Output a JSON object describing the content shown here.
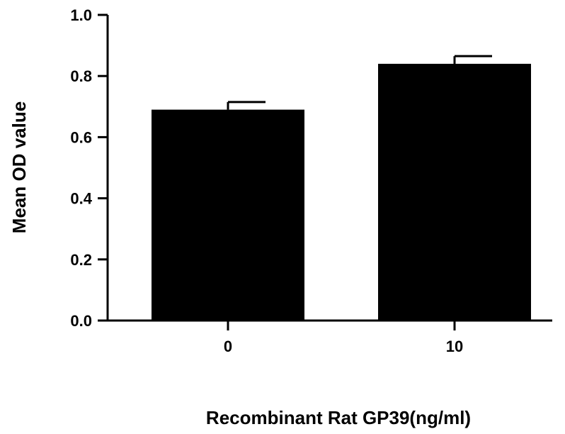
{
  "chart_data": {
    "type": "bar",
    "title": "",
    "xlabel": "Recombinant Rat GP39(ng/ml)",
    "ylabel": "Mean OD value",
    "categories": [
      "0",
      "10"
    ],
    "series": [
      {
        "values": [
          0.69,
          0.84
        ],
        "error": [
          0.025,
          0.025
        ]
      }
    ],
    "ylim": [
      0.0,
      1.0
    ],
    "yticks": [
      "0.0",
      "0.2",
      "0.4",
      "0.6",
      "0.8",
      "1.0"
    ],
    "grid": false,
    "legend": "none",
    "colors": {
      "bar": "#000000",
      "axis": "#000000",
      "background": "#ffffff"
    }
  }
}
